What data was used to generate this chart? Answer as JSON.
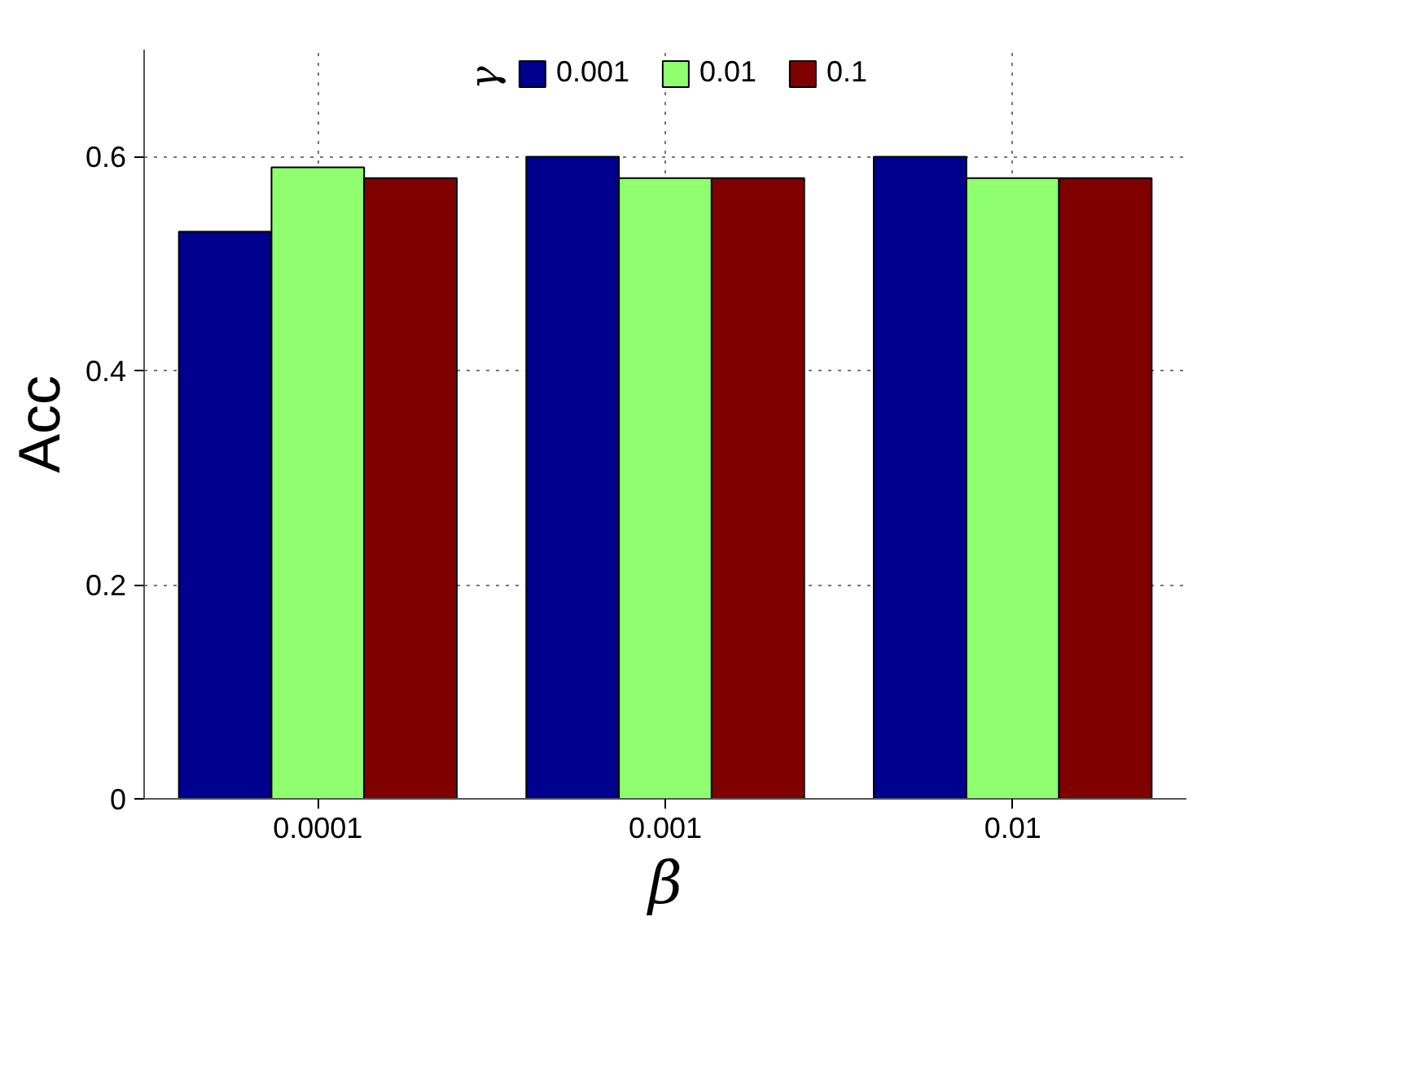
{
  "chart_data": {
    "type": "bar",
    "xlabel": "β",
    "ylabel": "Acc",
    "legend_title": "γ",
    "categories": [
      "0.0001",
      "0.001",
      "0.01"
    ],
    "series": [
      {
        "name": "0.001",
        "color": "#00008f",
        "values": [
          0.53,
          0.6,
          0.6
        ]
      },
      {
        "name": "0.01",
        "color": "#8fff70",
        "values": [
          0.59,
          0.58,
          0.58
        ]
      },
      {
        "name": "0.1",
        "color": "#800000",
        "values": [
          0.58,
          0.58,
          0.58
        ]
      }
    ],
    "ylim": [
      0,
      0.7
    ],
    "yticks": [
      0,
      0.2,
      0.4,
      0.6
    ],
    "grid": true,
    "legend": "top"
  }
}
